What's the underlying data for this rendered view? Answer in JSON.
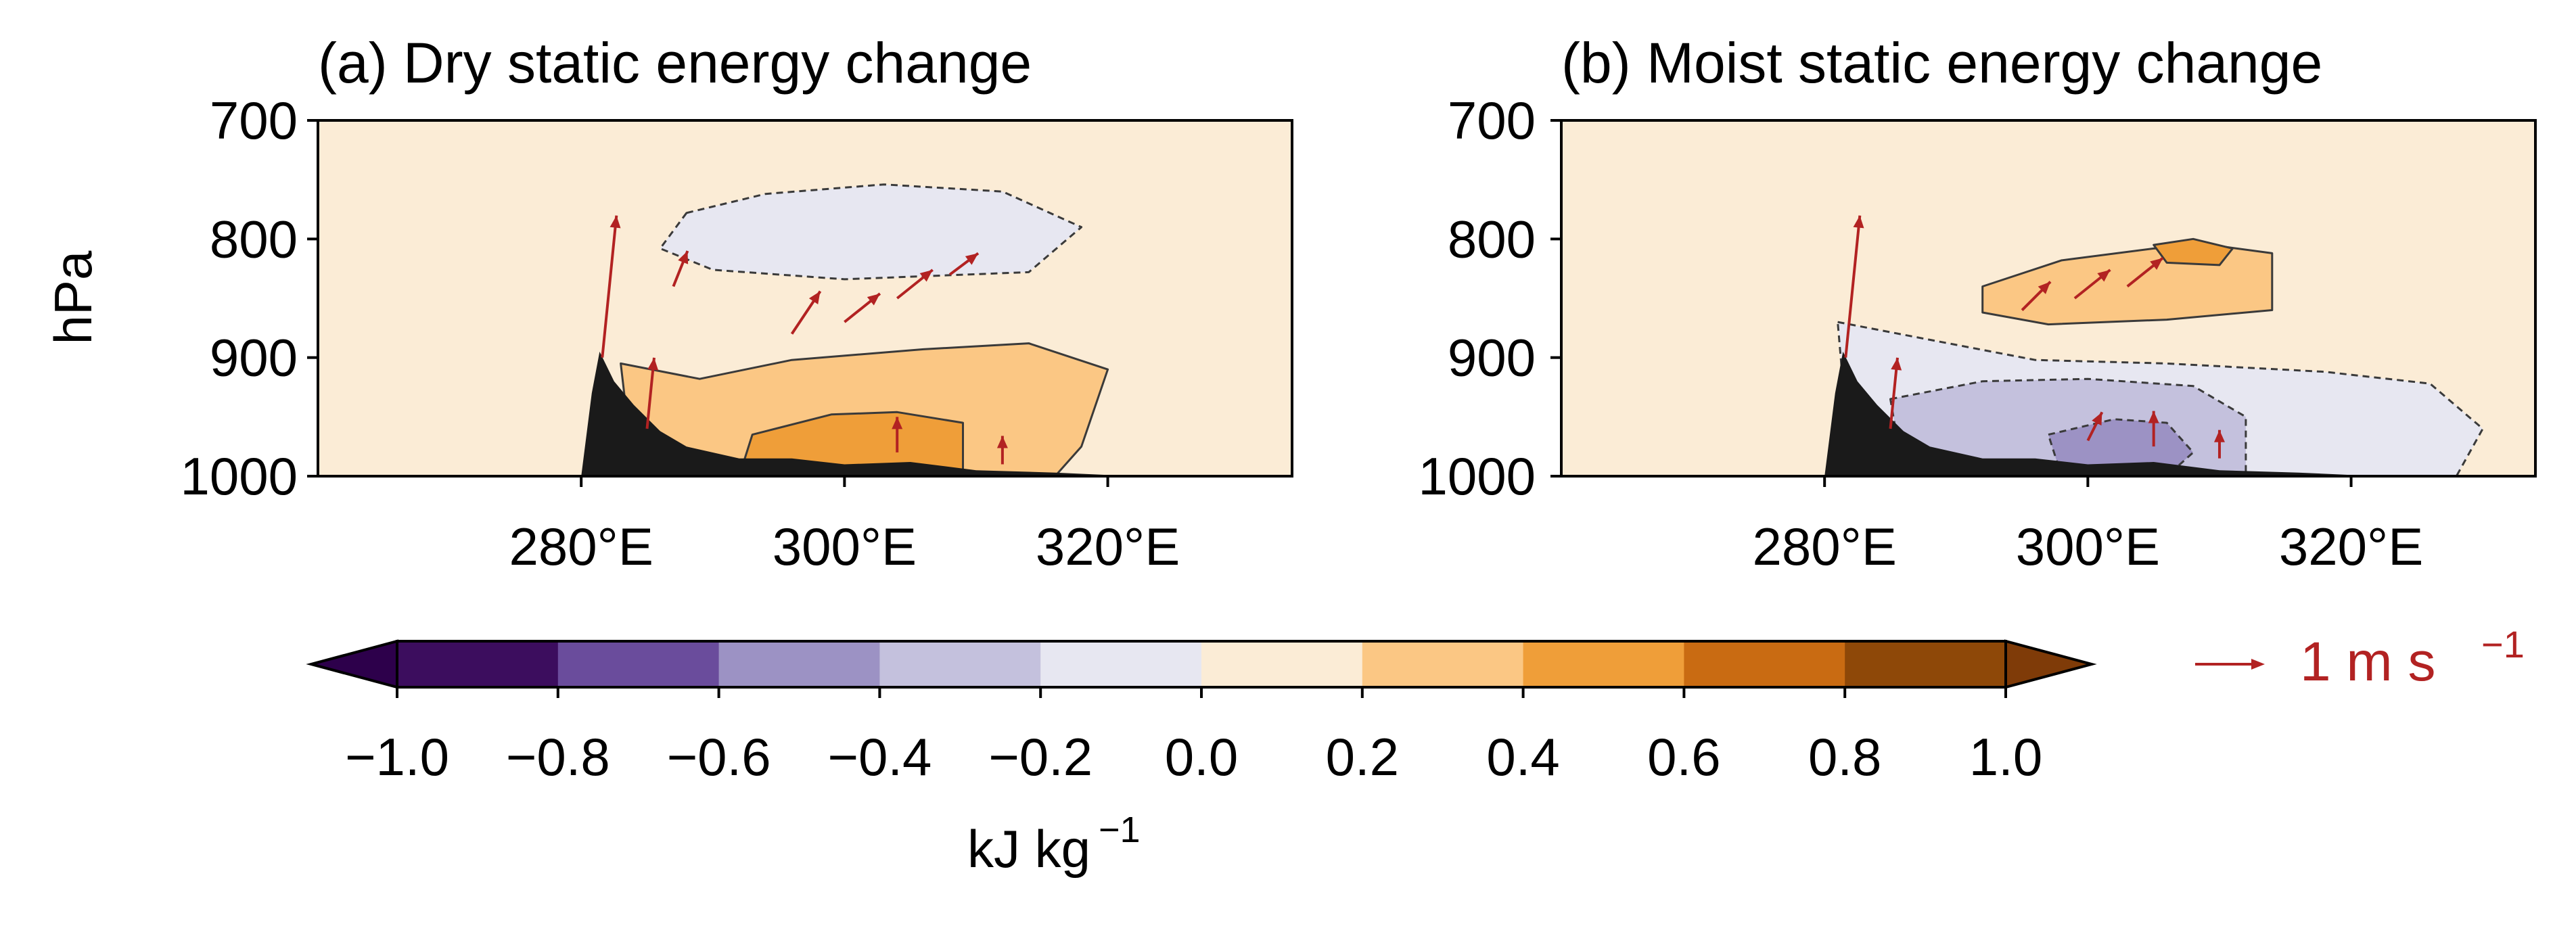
{
  "chart_data": [
    {
      "type": "heatmap",
      "title": "(a) Dry static energy change",
      "ylabel": "hPa",
      "xlabel": "",
      "y_ticks": [
        "700",
        "800",
        "900",
        "1000"
      ],
      "x_ticks": [
        "280°E",
        "300°E",
        "320°E"
      ],
      "x_tick_values": [
        280,
        300,
        320
      ],
      "y_tick_values": [
        700,
        800,
        900,
        1000
      ],
      "xlim": [
        260,
        334
      ],
      "ylim": [
        1000,
        700
      ],
      "y_inverted": true,
      "grid": false,
      "contour_levels": [
        {
          "range": [
            0.0,
            0.2
          ],
          "lon_pressure": [
            [
              260,
              700
            ],
            [
              334,
              700
            ],
            [
              334,
              1000
            ],
            [
              260,
              1000
            ]
          ]
        },
        {
          "range": [
            -0.2,
            0.0
          ],
          "lon_pressure": [
            [
              288,
              778
            ],
            [
              294,
              762
            ],
            [
              303,
              754
            ],
            [
              312,
              760
            ],
            [
              318,
              790
            ],
            [
              314,
              828
            ],
            [
              300,
              834
            ],
            [
              290,
              826
            ],
            [
              286,
              808
            ]
          ]
        },
        {
          "range": [
            0.2,
            0.4
          ],
          "lon_pressure": [
            [
              283,
              905
            ],
            [
              289,
              918
            ],
            [
              296,
              902
            ],
            [
              306,
              893
            ],
            [
              314,
              888
            ],
            [
              320,
              910
            ],
            [
              318,
              975
            ],
            [
              316,
              1000
            ],
            [
              284,
              1000
            ]
          ]
        },
        {
          "range": [
            0.4,
            0.6
          ],
          "lon_pressure": [
            [
              292,
              1000
            ],
            [
              293,
              965
            ],
            [
              299,
              948
            ],
            [
              304,
              946
            ],
            [
              309,
              955
            ],
            [
              309,
              1000
            ]
          ]
        }
      ],
      "terrain": [
        [
          280,
          1000
        ],
        [
          280.8,
          930
        ],
        [
          281.4,
          895
        ],
        [
          282.5,
          920
        ],
        [
          284,
          940
        ],
        [
          286,
          962
        ],
        [
          288,
          975
        ],
        [
          292,
          985
        ],
        [
          296,
          985
        ],
        [
          300,
          990
        ],
        [
          305,
          988
        ],
        [
          310,
          995
        ],
        [
          316,
          997
        ],
        [
          320,
          999
        ],
        [
          322,
          1000
        ]
      ],
      "wind_arrows": [
        {
          "lon": 281.6,
          "p": 900,
          "u": 0.1,
          "w": 1.0
        },
        {
          "lon": 285.0,
          "p": 960,
          "u": 0.05,
          "w": 0.5
        },
        {
          "lon": 287.0,
          "p": 840,
          "u": 0.1,
          "w": 0.25
        },
        {
          "lon": 296.0,
          "p": 880,
          "u": 0.2,
          "w": 0.3
        },
        {
          "lon": 300.0,
          "p": 870,
          "u": 0.25,
          "w": 0.2
        },
        {
          "lon": 304.0,
          "p": 850,
          "u": 0.25,
          "w": 0.2
        },
        {
          "lon": 308.0,
          "p": 830,
          "u": 0.2,
          "w": 0.15
        },
        {
          "lon": 304.0,
          "p": 980,
          "u": 0.0,
          "w": 0.25
        },
        {
          "lon": 312.0,
          "p": 990,
          "u": 0.0,
          "w": 0.2
        }
      ]
    },
    {
      "type": "heatmap",
      "title": "(b) Moist static energy change",
      "ylabel": "",
      "xlabel": "",
      "y_ticks": [
        "700",
        "800",
        "900",
        "1000"
      ],
      "x_ticks": [
        "280°E",
        "300°E",
        "320°E"
      ],
      "x_tick_values": [
        280,
        300,
        320
      ],
      "y_tick_values": [
        700,
        800,
        900,
        1000
      ],
      "xlim": [
        260,
        334
      ],
      "ylim": [
        1000,
        700
      ],
      "y_inverted": true,
      "grid": false,
      "contour_levels": [
        {
          "range": [
            0.0,
            0.2
          ],
          "lon_pressure": [
            [
              260,
              700
            ],
            [
              334,
              700
            ],
            [
              334,
              1000
            ],
            [
              260,
              1000
            ]
          ]
        },
        {
          "range": [
            -0.2,
            0.0
          ],
          "lon_pressure": [
            [
              281,
              870
            ],
            [
              288,
              885
            ],
            [
              296,
              902
            ],
            [
              306,
              905
            ],
            [
              318,
              912
            ],
            [
              326,
              922
            ],
            [
              330,
              960
            ],
            [
              328,
              1000
            ],
            [
              282,
              1000
            ]
          ]
        },
        {
          "range": [
            -0.4,
            -0.2
          ],
          "lon_pressure": [
            [
              285,
              935
            ],
            [
              292,
              920
            ],
            [
              300,
              918
            ],
            [
              308,
              924
            ],
            [
              312,
              950
            ],
            [
              312,
              1000
            ],
            [
              286,
              1000
            ]
          ]
        },
        {
          "range": [
            -0.6,
            -0.4
          ],
          "lon_pressure": [
            [
              297,
              965
            ],
            [
              302,
              952
            ],
            [
              306,
              955
            ],
            [
              308,
              980
            ],
            [
              306,
              1000
            ],
            [
              298,
              1000
            ]
          ]
        },
        {
          "range": [
            0.2,
            0.4
          ],
          "lon_pressure": [
            [
              292,
              840
            ],
            [
              298,
              818
            ],
            [
              305,
              808
            ],
            [
              310,
              806
            ],
            [
              314,
              812
            ],
            [
              314,
              860
            ],
            [
              306,
              868
            ],
            [
              297,
              872
            ],
            [
              292,
              862
            ]
          ]
        },
        {
          "range": [
            0.4,
            0.6
          ],
          "lon_pressure": [
            [
              305,
              805
            ],
            [
              308,
              800
            ],
            [
              311,
              808
            ],
            [
              310,
              822
            ],
            [
              306,
              820
            ]
          ]
        }
      ],
      "terrain": [
        [
          280,
          1000
        ],
        [
          280.8,
          930
        ],
        [
          281.4,
          895
        ],
        [
          282.5,
          920
        ],
        [
          284,
          940
        ],
        [
          286,
          962
        ],
        [
          288,
          975
        ],
        [
          292,
          985
        ],
        [
          296,
          985
        ],
        [
          300,
          990
        ],
        [
          305,
          988
        ],
        [
          310,
          995
        ],
        [
          316,
          997
        ],
        [
          320,
          999
        ],
        [
          322,
          1000
        ]
      ],
      "wind_arrows": [
        {
          "lon": 281.6,
          "p": 900,
          "u": 0.1,
          "w": 1.0
        },
        {
          "lon": 285.0,
          "p": 960,
          "u": 0.05,
          "w": 0.5
        },
        {
          "lon": 295.0,
          "p": 860,
          "u": 0.2,
          "w": 0.2
        },
        {
          "lon": 299.0,
          "p": 850,
          "u": 0.25,
          "w": 0.2
        },
        {
          "lon": 303.0,
          "p": 840,
          "u": 0.25,
          "w": 0.2
        },
        {
          "lon": 300.0,
          "p": 970,
          "u": 0.1,
          "w": 0.2
        },
        {
          "lon": 305.0,
          "p": 975,
          "u": 0.0,
          "w": 0.25
        },
        {
          "lon": 310.0,
          "p": 985,
          "u": 0.0,
          "w": 0.2
        }
      ]
    }
  ],
  "colorbar": {
    "label": "kJ kg",
    "label_exponent": "−1",
    "tick_labels": [
      "−1.0",
      "−0.8",
      "−0.6",
      "−0.4",
      "−0.2",
      "0.0",
      "0.2",
      "0.4",
      "0.6",
      "0.8",
      "1.0"
    ],
    "tick_values": [
      -1.0,
      -0.8,
      -0.6,
      -0.4,
      -0.2,
      0.0,
      0.2,
      0.4,
      0.6,
      0.8,
      1.0
    ],
    "extend": "both",
    "colors": [
      "#3c0d5e",
      "#6a4c9c",
      "#9c92c4",
      "#c4c1dd",
      "#e7e7f1",
      "#fbecd6",
      "#fbc784",
      "#ef9e39",
      "#c96b12",
      "#8e4808"
    ],
    "under_color": "#2d004b",
    "over_color": "#7f3b08"
  },
  "wind_key": {
    "value_label": "1 m s",
    "exponent": "−1",
    "color": "#b22222"
  },
  "colors": {
    "terrain": "#1a1a1a",
    "arrow": "#b22222",
    "contour_line": "#3a3a3a"
  }
}
